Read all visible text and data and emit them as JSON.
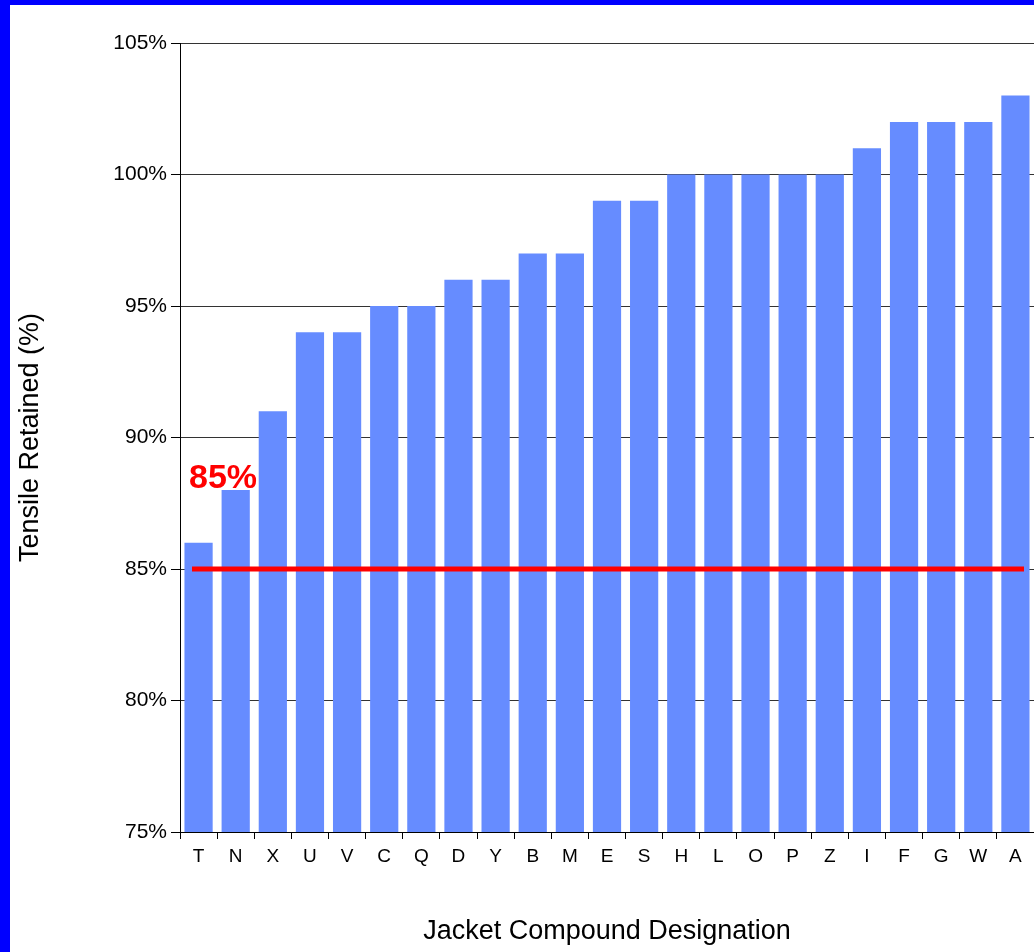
{
  "chart_data": {
    "type": "bar",
    "xlabel": "Jacket Compound Designation",
    "ylabel": "Tensile Retained (%)",
    "categories": [
      "T",
      "N",
      "X",
      "U",
      "V",
      "C",
      "Q",
      "D",
      "Y",
      "B",
      "M",
      "E",
      "S",
      "H",
      "L",
      "O",
      "P",
      "Z",
      "I",
      "F",
      "G",
      "W",
      "A"
    ],
    "values": [
      86,
      88,
      91,
      94,
      94,
      95,
      95,
      96,
      96,
      97,
      97,
      99,
      99,
      100,
      100,
      100,
      100,
      100,
      101,
      102,
      102,
      102,
      103
    ],
    "color": "#668cff",
    "ylim": [
      75,
      105
    ],
    "yticks": [
      {
        "value": 75,
        "label": "75%"
      },
      {
        "value": 80,
        "label": "80%"
      },
      {
        "value": 85,
        "label": "85%"
      },
      {
        "value": 90,
        "label": "90%"
      },
      {
        "value": 95,
        "label": "95%"
      },
      {
        "value": 100,
        "label": "100%"
      },
      {
        "value": 105,
        "label": "105%"
      }
    ],
    "grid": "y",
    "legend": false,
    "ref_lines": [
      {
        "axis": "y",
        "value": 85,
        "label": "85%",
        "color": "#ff0000"
      }
    ]
  }
}
